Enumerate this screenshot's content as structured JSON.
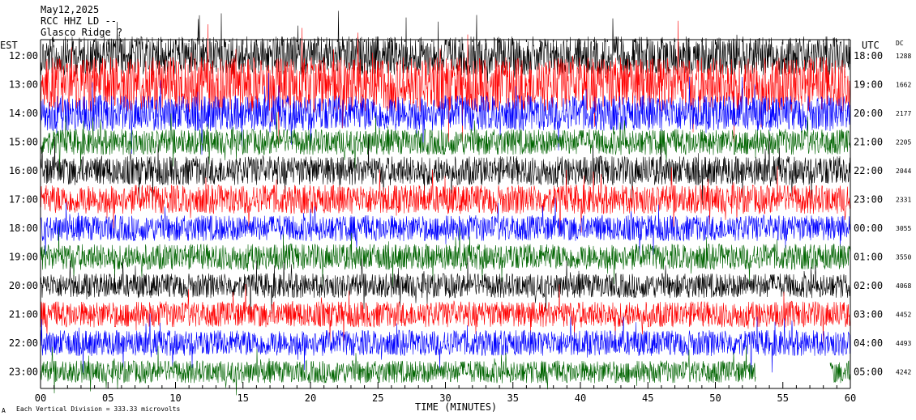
{
  "header": {
    "date": "May12,2025",
    "station": "RCC HHZ LD --",
    "location": "Glasco Ridge ?"
  },
  "left_timezone": "EST",
  "right_timezone": "UTC",
  "dc_header": "DC",
  "footer": {
    "scale_note": "Each Vertical Division = 333.33 microvolts",
    "corner_mark": "A"
  },
  "colors": {
    "trace_cycle": [
      "#000000",
      "#ff0000",
      "#0000ff",
      "#006400"
    ],
    "axis": "#000000",
    "background": "#ffffff"
  },
  "chart_data": {
    "type": "line",
    "xlabel": "TIME (MINUTES)",
    "xlim": [
      0,
      60
    ],
    "x_ticks": [
      "00",
      "05",
      "10",
      "15",
      "20",
      "25",
      "30",
      "35",
      "40",
      "45",
      "50",
      "55",
      "60"
    ],
    "series": [
      {
        "left_label": "12:00",
        "right_label": "18:00",
        "dc": "1288"
      },
      {
        "left_label": "13:00",
        "right_label": "19:00",
        "dc": "1662"
      },
      {
        "left_label": "14:00",
        "right_label": "20:00",
        "dc": "2177"
      },
      {
        "left_label": "15:00",
        "right_label": "21:00",
        "dc": "2205"
      },
      {
        "left_label": "16:00",
        "right_label": "22:00",
        "dc": "2044"
      },
      {
        "left_label": "17:00",
        "right_label": "23:00",
        "dc": "2331"
      },
      {
        "left_label": "18:00",
        "right_label": "00:00",
        "dc": "3055"
      },
      {
        "left_label": "19:00",
        "right_label": "01:00",
        "dc": "3550"
      },
      {
        "left_label": "20:00",
        "right_label": "02:00",
        "dc": "4068"
      },
      {
        "left_label": "21:00",
        "right_label": "03:00",
        "dc": "4452"
      },
      {
        "left_label": "22:00",
        "right_label": "04:00",
        "dc": "4493"
      },
      {
        "left_label": "23:00",
        "right_label": "05:00",
        "dc": "4242"
      }
    ],
    "amplitudes": [
      0.6,
      0.85,
      0.55,
      0.4,
      0.45,
      0.45,
      0.4,
      0.4,
      0.38,
      0.4,
      0.4,
      0.35
    ],
    "last_trace_end_minute": 53,
    "last_trace_resume_minute": 58.5,
    "grid": false
  }
}
